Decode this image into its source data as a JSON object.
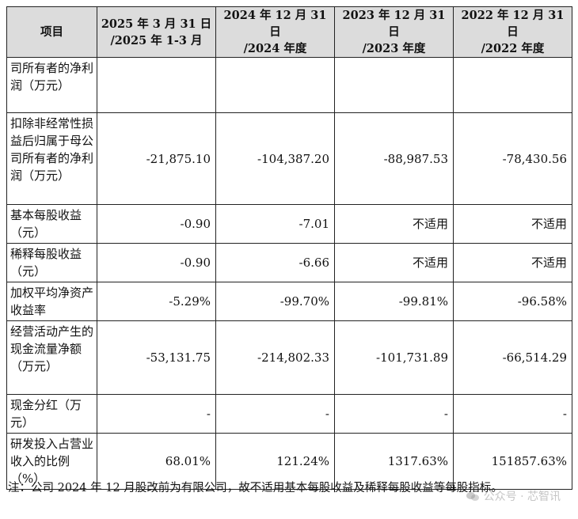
{
  "table": {
    "headers": [
      {
        "line1": "项目",
        "line2": ""
      },
      {
        "line1": "2025 年 3 月 31 日",
        "line2": "/2025 年 1-3 月"
      },
      {
        "line1": "2024 年 12 月 31 日",
        "line2": "/2024 年度"
      },
      {
        "line1": "2023 年 12 月 31 日",
        "line2": "/2023 年度"
      },
      {
        "line1": "2022 年 12 月 31 日",
        "line2": "/2022 年度"
      }
    ],
    "rows": [
      {
        "label": "司所有者的净利润（万元）",
        "values": [
          "",
          "",
          "",
          ""
        ]
      },
      {
        "label": "扣除非经常性损益后归属于母公司所有者的净利润（万元）",
        "values": [
          "-21,875.10",
          "-104,387.20",
          "-88,987.53",
          "-78,430.56"
        ]
      },
      {
        "label": "基本每股收益（元）",
        "values": [
          "-0.90",
          "-7.01",
          "不适用",
          "不适用"
        ]
      },
      {
        "label": "稀释每股收益（元）",
        "values": [
          "-0.90",
          "-6.66",
          "不适用",
          "不适用"
        ]
      },
      {
        "label": "加权平均净资产收益率",
        "values": [
          "-5.29%",
          "-99.70%",
          "-99.81%",
          "-96.58%"
        ]
      },
      {
        "label": "经营活动产生的现金流量净额（万元）",
        "values": [
          "-53,131.75",
          "-214,802.33",
          "-101,731.89",
          "-66,514.29"
        ]
      },
      {
        "label": "现金分红（万元）",
        "values": [
          "-",
          "-",
          "-",
          "-"
        ]
      },
      {
        "label": "研发投入占营业收入的比例（%）",
        "values": [
          "68.01%",
          "121.24%",
          "1317.63%",
          "151857.63%"
        ]
      }
    ]
  },
  "footnote": "注：公司 2024 年 12 月股改前为有限公司，故不适用基本每股收益及稀释每股收益等每股指标。",
  "watermark": {
    "text": "公众号 · 芯智讯",
    "icon": "chat-bubbles-icon"
  },
  "colors": {
    "header_bg": "#dcdcdc",
    "border": "#222222",
    "text": "#111111"
  },
  "empty_cell": ""
}
